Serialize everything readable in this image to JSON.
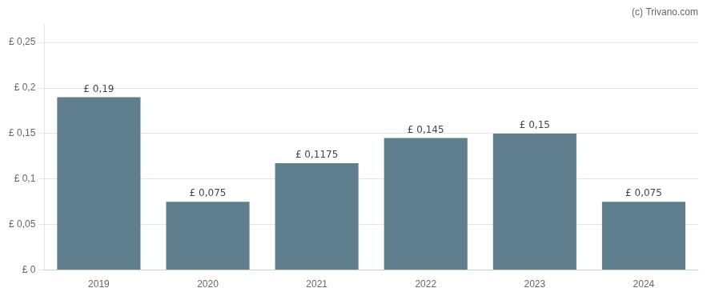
{
  "chart_data": {
    "type": "bar",
    "categories": [
      "2019",
      "2020",
      "2021",
      "2022",
      "2023",
      "2024"
    ],
    "values": [
      0.19,
      0.075,
      0.1175,
      0.145,
      0.15,
      0.075
    ],
    "value_labels": [
      "£ 0,19",
      "£ 0,075",
      "£ 0,1175",
      "£ 0,145",
      "£ 0,15",
      "£ 0,075"
    ],
    "data_labels": true,
    "color": "#5f7f8e",
    "ylim": [
      0,
      0.27
    ],
    "yticks": [
      {
        "value": 0,
        "label": "£ 0"
      },
      {
        "value": 0.05,
        "label": "£ 0,05"
      },
      {
        "value": 0.1,
        "label": "£ 0,1"
      },
      {
        "value": 0.15,
        "label": "£ 0,15"
      },
      {
        "value": 0.2,
        "label": "£ 0,2"
      },
      {
        "value": 0.25,
        "label": "£ 0,25"
      }
    ],
    "grid": true,
    "annotations": [
      "(c) Trivano.com"
    ]
  }
}
